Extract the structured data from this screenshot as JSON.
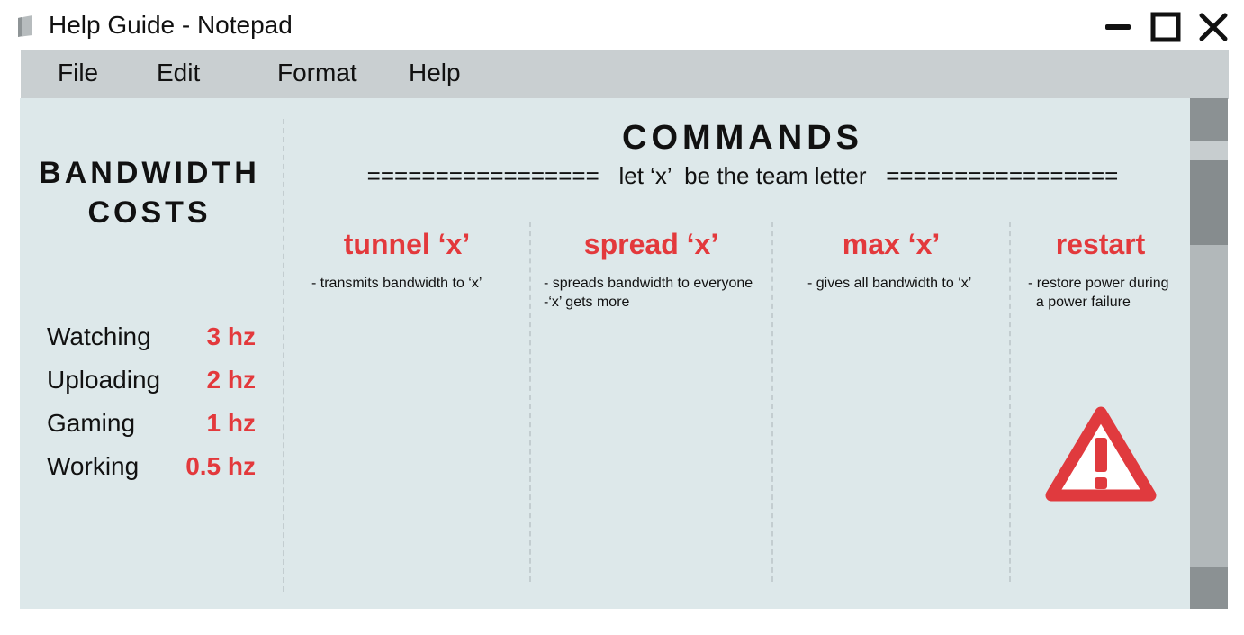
{
  "window": {
    "title": "Help Guide - Notepad",
    "controls": [
      "minimize",
      "maximize",
      "close"
    ]
  },
  "menu": {
    "items": [
      "File",
      "Edit",
      "Format",
      "Help"
    ]
  },
  "bandwidth": {
    "title_line1": "BANDWIDTH",
    "title_line2": "COSTS",
    "costs": [
      {
        "label": "Watching",
        "value": "3 hz"
      },
      {
        "label": "Uploading",
        "value": "2 hz"
      },
      {
        "label": "Gaming",
        "value": "1 hz"
      },
      {
        "label": "Working",
        "value": "0.5 hz"
      }
    ]
  },
  "commands": {
    "title": "COMMANDS",
    "subtitle": "=================   let ‘x’  be the team letter   =================",
    "items": [
      {
        "name": "tunnel ‘x’",
        "desc": "- transmits bandwidth to ‘x’"
      },
      {
        "name": "spread ‘x’",
        "desc": "- spreads bandwidth to everyone\n-‘x’ gets more"
      },
      {
        "name": "max ‘x’",
        "desc": "- gives all bandwidth to ‘x’"
      },
      {
        "name": "restart",
        "desc": "- restore power during\n  a power failure"
      }
    ]
  },
  "icons": {
    "app": "notepad-icon",
    "warning": "warning-icon"
  },
  "colors": {
    "accent_red": "#e3393c",
    "content_bg": "#dde8ea",
    "menubar_bg": "#c9cfd1"
  }
}
